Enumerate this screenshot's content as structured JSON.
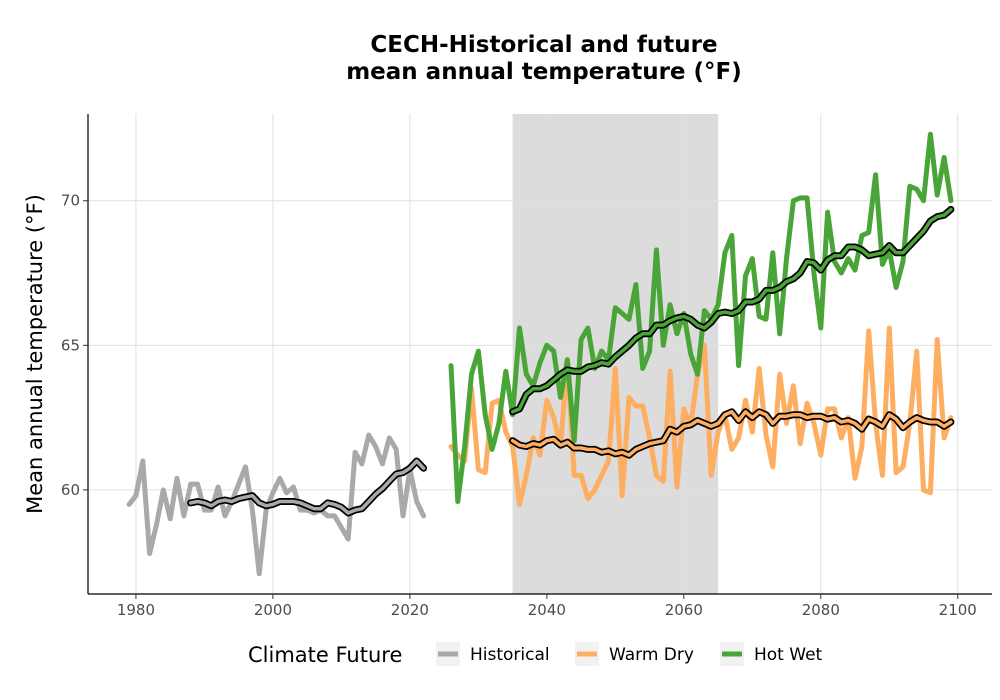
{
  "chart_data": {
    "type": "line",
    "title_lines": [
      "CECH-Historical and future",
      "mean annual temperature (°F)"
    ],
    "xlabel": "",
    "ylabel": "Mean annual temperature (°F)",
    "xlim": [
      1973,
      2105
    ],
    "ylim": [
      56.4,
      73.0
    ],
    "x_ticks": [
      1980,
      2000,
      2020,
      2040,
      2060,
      2080,
      2100
    ],
    "y_ticks": [
      60,
      65,
      70
    ],
    "grid": true,
    "shaded_period": [
      2035,
      2065
    ],
    "legend": {
      "title": "Climate Future",
      "position": "bottom",
      "entries": [
        "Historical",
        "Warm Dry",
        "Hot Wet"
      ]
    },
    "colors": {
      "Historical": "#a9a9a9",
      "Warm Dry": "#fdae61",
      "Hot Wet": "#4aa538",
      "shade": "#dcdcdc",
      "grid": "#e0e0e0"
    },
    "series": [
      {
        "name": "Historical",
        "x": [
          1979,
          1980,
          1981,
          1982,
          1983,
          1984,
          1985,
          1986,
          1987,
          1988,
          1989,
          1990,
          1991,
          1992,
          1993,
          1994,
          1995,
          1996,
          1997,
          1998,
          1999,
          2000,
          2001,
          2002,
          2003,
          2004,
          2005,
          2006,
          2007,
          2008,
          2009,
          2010,
          2011,
          2012,
          2013,
          2014,
          2015,
          2016,
          2017,
          2018,
          2019,
          2020,
          2021,
          2022
        ],
        "values": [
          59.5,
          59.8,
          61.0,
          57.8,
          58.8,
          60.0,
          59.0,
          60.4,
          59.1,
          60.2,
          60.2,
          59.3,
          59.3,
          60.1,
          59.1,
          59.6,
          60.2,
          60.8,
          59.3,
          57.1,
          59.3,
          59.9,
          60.4,
          59.9,
          60.1,
          59.3,
          59.3,
          59.2,
          59.3,
          59.1,
          59.1,
          58.7,
          58.3,
          61.3,
          60.9,
          61.9,
          61.5,
          60.9,
          61.8,
          61.4,
          59.1,
          60.7,
          59.6,
          59.1
        ]
      },
      {
        "name": "Historical moving average",
        "x": [
          1988,
          1989,
          1990,
          1991,
          1992,
          1993,
          1994,
          1995,
          1996,
          1997,
          1998,
          1999,
          2000,
          2001,
          2002,
          2003,
          2004,
          2005,
          2006,
          2007,
          2008,
          2009,
          2010,
          2011,
          2012,
          2013,
          2014,
          2015,
          2016,
          2017,
          2018,
          2019,
          2020,
          2021,
          2022
        ],
        "values": [
          59.55,
          59.6,
          59.55,
          59.45,
          59.6,
          59.65,
          59.6,
          59.7,
          59.75,
          59.8,
          59.55,
          59.45,
          59.5,
          59.6,
          59.6,
          59.6,
          59.55,
          59.45,
          59.35,
          59.35,
          59.55,
          59.5,
          59.4,
          59.2,
          59.3,
          59.35,
          59.6,
          59.85,
          60.05,
          60.3,
          60.55,
          60.6,
          60.75,
          61.0,
          60.75
        ]
      },
      {
        "name": "Warm Dry",
        "x": [
          2026,
          2027,
          2028,
          2029,
          2030,
          2031,
          2032,
          2033,
          2034,
          2035,
          2036,
          2037,
          2038,
          2039,
          2040,
          2041,
          2042,
          2043,
          2044,
          2045,
          2046,
          2047,
          2048,
          2049,
          2050,
          2051,
          2052,
          2053,
          2054,
          2055,
          2056,
          2057,
          2058,
          2059,
          2060,
          2061,
          2062,
          2063,
          2064,
          2065,
          2066,
          2067,
          2068,
          2069,
          2070,
          2071,
          2072,
          2073,
          2074,
          2075,
          2076,
          2077,
          2078,
          2079,
          2080,
          2081,
          2082,
          2083,
          2084,
          2085,
          2086,
          2087,
          2088,
          2089,
          2090,
          2091,
          2092,
          2093,
          2094,
          2095,
          2096,
          2097,
          2098,
          2099
        ],
        "values": [
          61.5,
          61.2,
          61.0,
          63.5,
          60.7,
          60.6,
          63.0,
          63.1,
          62.0,
          61.5,
          59.5,
          60.5,
          61.8,
          61.2,
          63.1,
          62.5,
          61.5,
          64.5,
          60.5,
          60.5,
          59.7,
          60.0,
          60.5,
          61.0,
          64.2,
          59.8,
          63.2,
          62.9,
          62.9,
          61.8,
          60.5,
          60.3,
          64.1,
          60.1,
          62.8,
          62.2,
          64.0,
          65.0,
          60.5,
          62.0,
          62.6,
          61.4,
          61.8,
          63.1,
          62.0,
          64.2,
          61.9,
          60.8,
          64.0,
          62.3,
          63.6,
          61.6,
          63.0,
          62.3,
          61.2,
          62.8,
          62.8,
          61.8,
          62.5,
          60.4,
          61.5,
          65.5,
          62.3,
          60.5,
          65.6,
          60.6,
          60.8,
          62.3,
          64.8,
          60.0,
          59.9,
          65.2,
          61.8,
          62.5
        ]
      },
      {
        "name": "Warm Dry moving average",
        "x": [
          2035,
          2036,
          2037,
          2038,
          2039,
          2040,
          2041,
          2042,
          2043,
          2044,
          2045,
          2046,
          2047,
          2048,
          2049,
          2050,
          2051,
          2052,
          2053,
          2054,
          2055,
          2056,
          2057,
          2058,
          2059,
          2060,
          2061,
          2062,
          2063,
          2064,
          2065,
          2066,
          2067,
          2068,
          2069,
          2070,
          2071,
          2072,
          2073,
          2074,
          2075,
          2076,
          2077,
          2078,
          2079,
          2080,
          2081,
          2082,
          2083,
          2084,
          2085,
          2086,
          2087,
          2088,
          2089,
          2090,
          2091,
          2092,
          2093,
          2094,
          2095,
          2096,
          2097,
          2098,
          2099
        ],
        "values": [
          61.7,
          61.55,
          61.5,
          61.6,
          61.55,
          61.7,
          61.75,
          61.55,
          61.65,
          61.45,
          61.45,
          61.4,
          61.4,
          61.3,
          61.35,
          61.25,
          61.3,
          61.2,
          61.4,
          61.5,
          61.6,
          61.65,
          61.7,
          62.1,
          62.0,
          62.2,
          62.25,
          62.4,
          62.3,
          62.2,
          62.3,
          62.6,
          62.7,
          62.4,
          62.7,
          62.5,
          62.7,
          62.6,
          62.3,
          62.55,
          62.55,
          62.6,
          62.6,
          62.5,
          62.55,
          62.55,
          62.45,
          62.5,
          62.35,
          62.4,
          62.3,
          62.1,
          62.45,
          62.35,
          62.2,
          62.6,
          62.45,
          62.15,
          62.35,
          62.5,
          62.4,
          62.35,
          62.35,
          62.2,
          62.35
        ]
      },
      {
        "name": "Hot Wet",
        "x": [
          2026,
          2027,
          2028,
          2029,
          2030,
          2031,
          2032,
          2033,
          2034,
          2035,
          2036,
          2037,
          2038,
          2039,
          2040,
          2041,
          2042,
          2043,
          2044,
          2045,
          2046,
          2047,
          2048,
          2049,
          2050,
          2051,
          2052,
          2053,
          2054,
          2055,
          2056,
          2057,
          2058,
          2059,
          2060,
          2061,
          2062,
          2063,
          2064,
          2065,
          2066,
          2067,
          2068,
          2069,
          2070,
          2071,
          2072,
          2073,
          2074,
          2075,
          2076,
          2077,
          2078,
          2079,
          2080,
          2081,
          2082,
          2083,
          2084,
          2085,
          2086,
          2087,
          2088,
          2089,
          2090,
          2091,
          2092,
          2093,
          2094,
          2095,
          2096,
          2097,
          2098,
          2099
        ],
        "values": [
          64.3,
          59.6,
          61.5,
          64.0,
          64.8,
          62.6,
          61.4,
          62.3,
          64.1,
          62.6,
          65.6,
          64.0,
          63.6,
          64.4,
          65.0,
          64.8,
          63.2,
          64.5,
          61.7,
          65.2,
          65.6,
          64.2,
          64.8,
          64.5,
          66.3,
          66.1,
          65.9,
          67.1,
          64.2,
          64.8,
          68.3,
          65.0,
          66.4,
          65.4,
          66.1,
          64.7,
          64.0,
          66.2,
          65.9,
          66.4,
          68.2,
          68.8,
          64.3,
          67.4,
          68.0,
          66.0,
          65.9,
          68.2,
          65.4,
          68.0,
          70.0,
          70.1,
          70.1,
          67.5,
          65.6,
          69.6,
          67.9,
          67.5,
          68.0,
          67.6,
          68.8,
          68.9,
          70.9,
          67.8,
          68.3,
          67.0,
          67.9,
          70.5,
          70.4,
          70.0,
          72.3,
          70.2,
          71.5,
          70.0
        ]
      },
      {
        "name": "Hot Wet moving average",
        "x": [
          2035,
          2036,
          2037,
          2038,
          2039,
          2040,
          2041,
          2042,
          2043,
          2044,
          2045,
          2046,
          2047,
          2048,
          2049,
          2050,
          2051,
          2052,
          2053,
          2054,
          2055,
          2056,
          2057,
          2058,
          2059,
          2060,
          2061,
          2062,
          2063,
          2064,
          2065,
          2066,
          2067,
          2068,
          2069,
          2070,
          2071,
          2072,
          2073,
          2074,
          2075,
          2076,
          2077,
          2078,
          2079,
          2080,
          2081,
          2082,
          2083,
          2084,
          2085,
          2086,
          2087,
          2088,
          2089,
          2090,
          2091,
          2092,
          2093,
          2094,
          2095,
          2096,
          2097,
          2098,
          2099
        ],
        "values": [
          62.7,
          62.8,
          63.3,
          63.5,
          63.5,
          63.6,
          63.8,
          64.0,
          64.15,
          64.1,
          64.1,
          64.25,
          64.3,
          64.4,
          64.35,
          64.6,
          64.8,
          65.0,
          65.25,
          65.4,
          65.4,
          65.7,
          65.7,
          65.85,
          65.95,
          66.0,
          65.9,
          65.7,
          65.6,
          65.8,
          66.1,
          66.15,
          66.1,
          66.2,
          66.5,
          66.5,
          66.6,
          66.9,
          66.9,
          67.0,
          67.2,
          67.3,
          67.5,
          67.9,
          67.85,
          67.6,
          67.95,
          68.1,
          68.1,
          68.4,
          68.4,
          68.3,
          68.1,
          68.15,
          68.2,
          68.45,
          68.2,
          68.2,
          68.45,
          68.7,
          68.95,
          69.3,
          69.45,
          69.5,
          69.7
        ]
      }
    ]
  }
}
